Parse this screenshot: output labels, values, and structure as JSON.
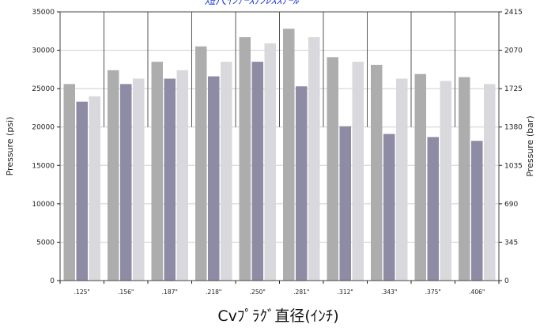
{
  "chart_data": {
    "type": "bar",
    "title": "短尺ｲﾝｱｰｽﾃﾝﾚｽｽﾁｰﾙ",
    "xlabel": "Cvﾌﾟﾗｸﾞ直径(ｲﾝﾁ)",
    "ylabel": "Pressure (psi)",
    "ylabel_right": "Pressure (bar)",
    "ylim": [
      0,
      35000
    ],
    "y_ticks": [
      0,
      5000,
      10000,
      15000,
      20000,
      25000,
      30000,
      35000
    ],
    "y_right_ticks": [
      "0",
      "345",
      "690",
      "1035",
      "1380",
      "1725",
      "2070",
      "2415"
    ],
    "grid": true,
    "categories": [
      ".125\"",
      ".156\"",
      ".187\"",
      ".218\"",
      ".250\"",
      ".281\"",
      ".312\"",
      ".343\"",
      ".375\"",
      ".406\""
    ],
    "series": [
      {
        "values": [
          25600,
          27400,
          28500,
          30500,
          31700,
          32800,
          29100,
          28100,
          26900,
          26500
        ],
        "color": "#adadad"
      },
      {
        "values": [
          23300,
          25600,
          26300,
          26600,
          28500,
          25300,
          20100,
          19100,
          18700,
          18200
        ],
        "color": "#8e8ba5"
      },
      {
        "values": [
          24000,
          26300,
          27400,
          28500,
          30900,
          31700,
          28500,
          26300,
          26000,
          25600
        ],
        "color": "#d8d8dd"
      }
    ]
  }
}
